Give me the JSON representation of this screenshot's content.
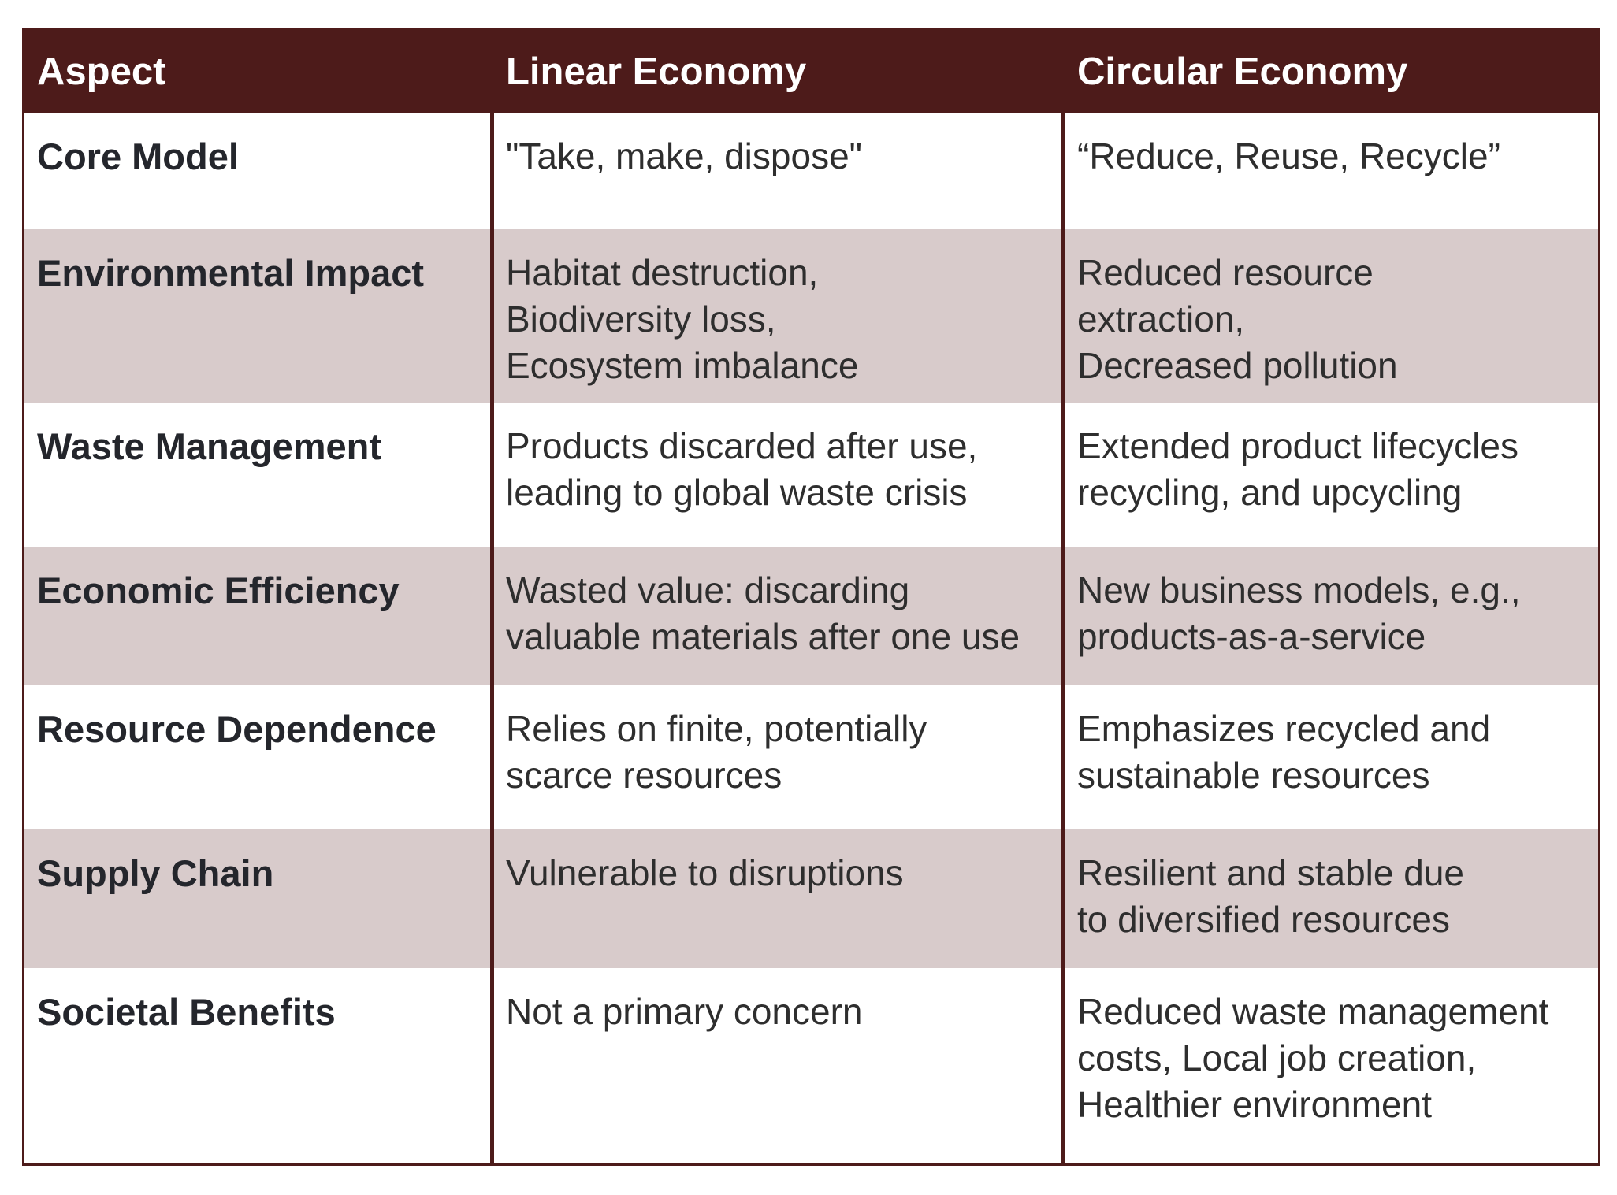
{
  "table": {
    "headers": [
      "Aspect",
      "Linear Economy",
      "Circular Economy"
    ],
    "rows": [
      {
        "aspect": "Core Model",
        "linear": [
          "\"Take, make, dispose\""
        ],
        "circular": [
          "“Reduce, Reuse, Recycle”"
        ]
      },
      {
        "aspect": "Environmental Impact",
        "linear": [
          "Habitat destruction,",
          "Biodiversity loss,",
          "Ecosystem imbalance"
        ],
        "circular": [
          "Reduced resource",
          "extraction,",
          "Decreased pollution"
        ]
      },
      {
        "aspect": "Waste Management",
        "linear": [
          "Products discarded after use,",
          "leading to global waste crisis"
        ],
        "circular": [
          "Extended product lifecycles",
          "recycling, and upcycling"
        ]
      },
      {
        "aspect": "Economic Efficiency",
        "linear": [
          "Wasted value: discarding",
          "valuable materials after one use"
        ],
        "circular": [
          "New business models, e.g.,",
          "products-as-a-service"
        ]
      },
      {
        "aspect": "Resource Dependence",
        "linear": [
          "Relies on finite, potentially",
          "scarce resources"
        ],
        "circular": [
          "Emphasizes recycled and",
          "sustainable resources"
        ]
      },
      {
        "aspect": "Supply Chain",
        "linear": [
          "Vulnerable to disruptions"
        ],
        "circular": [
          "Resilient and stable due",
          "to diversified resources"
        ]
      },
      {
        "aspect": "Societal Benefits",
        "linear": [
          "Not a primary concern"
        ],
        "circular": [
          "Reduced waste management",
          "costs, Local job creation,",
          "Healthier environment"
        ]
      }
    ]
  },
  "colors": {
    "header_bg": "#4d1b1a",
    "header_text": "#ffffff",
    "shaded_row_bg": "#d8cbcb",
    "body_text": "#2e2e2e"
  }
}
